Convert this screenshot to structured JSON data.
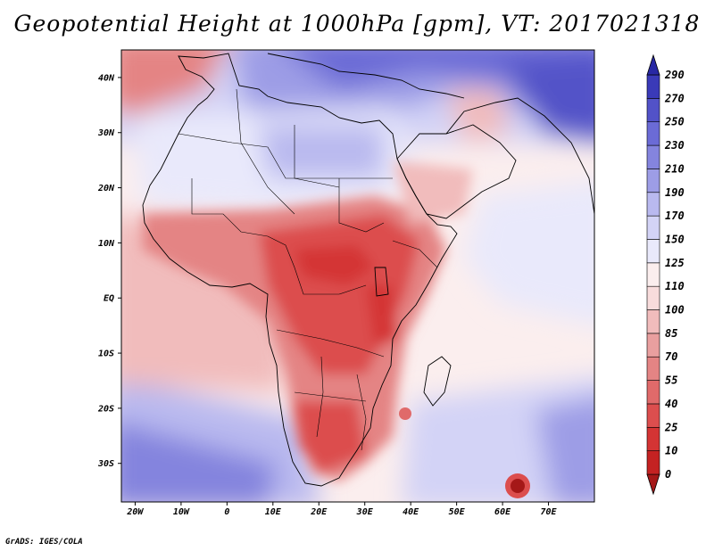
{
  "title": "Geopotential Height at 1000hPa [gpm], VT: 2017021318",
  "credit": "GrADS: IGES/COLA",
  "map": {
    "region": "Africa and surrounding oceans",
    "variable": "Geopotential Height",
    "level": "1000hPa",
    "units": "gpm",
    "valid_time": "2017021318",
    "lon_ticks": [
      "20W",
      "10W",
      "0",
      "10E",
      "20E",
      "30E",
      "40E",
      "50E",
      "60E",
      "70E"
    ],
    "lat_ticks": [
      "40N",
      "30N",
      "20N",
      "10N",
      "EQ",
      "10S",
      "20S",
      "30S"
    ],
    "lon_range": [
      -23,
      80
    ],
    "lat_range": [
      -37,
      45
    ]
  },
  "colorbar": {
    "labels": [
      "0",
      "10",
      "25",
      "40",
      "55",
      "70",
      "85",
      "100",
      "110",
      "125",
      "150",
      "170",
      "190",
      "210",
      "230",
      "250",
      "270",
      "290"
    ],
    "colors": [
      "#a51818",
      "#c42222",
      "#d43434",
      "#dc4e4e",
      "#e06a6a",
      "#e48484",
      "#e99f9f",
      "#f1bcbc",
      "#f8dcdc",
      "#fbeeee",
      "#e9e9fb",
      "#d3d3f6",
      "#b9b9ef",
      "#9d9de6",
      "#8484de",
      "#6b6bd6",
      "#5252c8",
      "#3a3ab8",
      "#2828a4"
    ]
  },
  "colors": {
    "ocean_neutral": "#fbeeee",
    "coast": "#000000",
    "frame": "#000000"
  }
}
